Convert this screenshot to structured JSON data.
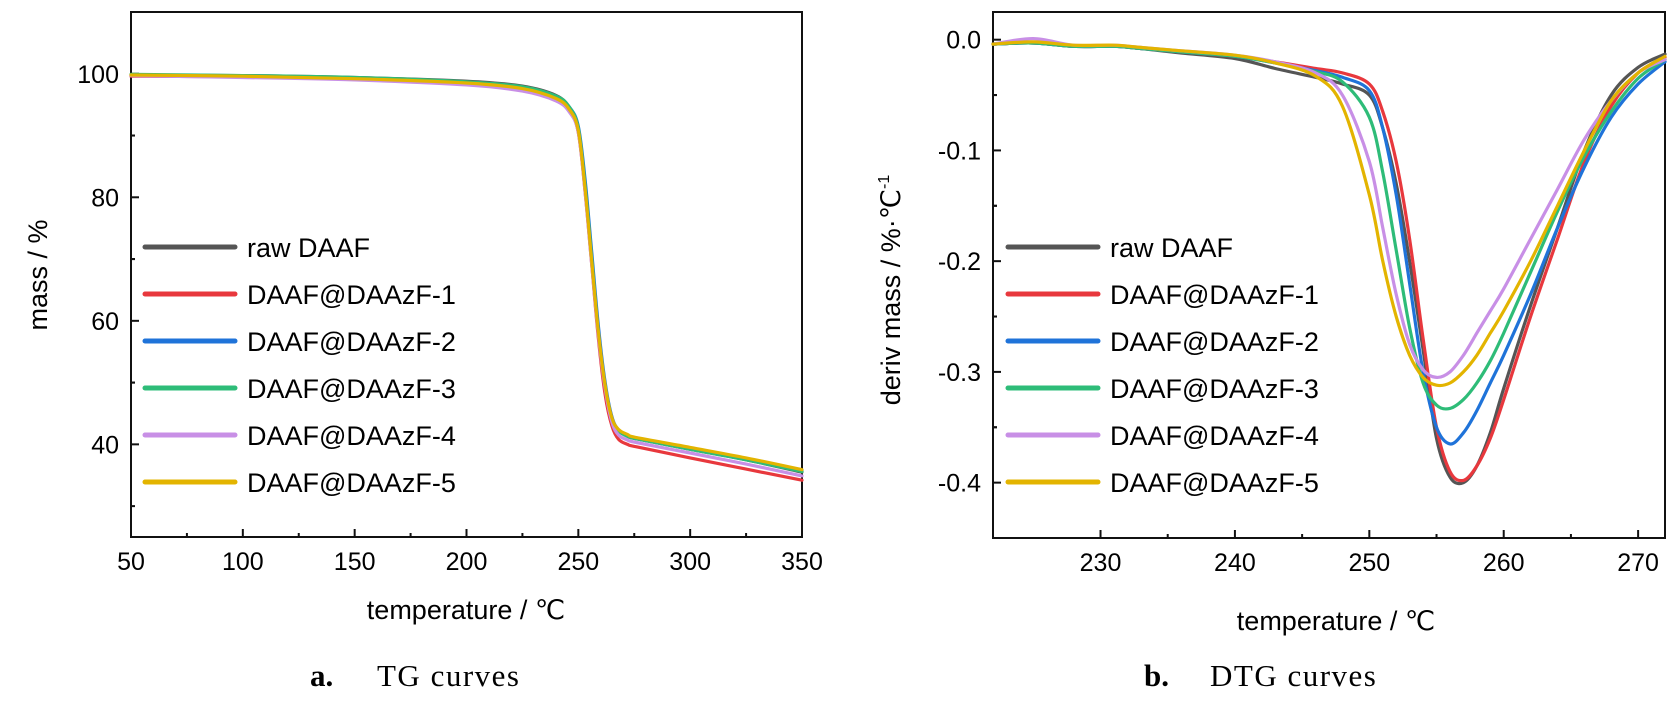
{
  "figure": {
    "panels": [
      {
        "caption_letter": "a.",
        "caption_text": "TG curves"
      },
      {
        "caption_letter": "b.",
        "caption_text": "DTG curves"
      }
    ]
  },
  "colors": {
    "raw DAAF": "#555555",
    "DAAF@DAAzF-1": "#e8383d",
    "DAAF@DAAzF-2": "#1f73d9",
    "DAAF@DAAzF-3": "#2ebc78",
    "DAAF@DAAzF-4": "#c88fe6",
    "DAAF@DAAzF-5": "#e3b400"
  },
  "chart_data": [
    {
      "type": "line",
      "xlabel": "temperature / ℃",
      "ylabel": "mass / %",
      "xlim": [
        50,
        350
      ],
      "ylim": [
        25,
        110
      ],
      "xticks": [
        50,
        100,
        150,
        200,
        250,
        300,
        350
      ],
      "yticks": [
        40,
        60,
        80,
        100
      ],
      "legend_position": "center-left",
      "grid": false,
      "series": [
        {
          "name": "raw DAAF",
          "x": [
            50,
            100,
            150,
            200,
            225,
            240,
            246,
            250,
            253,
            256,
            259,
            262,
            265,
            268,
            272,
            276,
            300,
            325,
            350
          ],
          "y": [
            99.8,
            99.7,
            99.4,
            98.8,
            98.0,
            96.5,
            94.5,
            91.0,
            82,
            70,
            58,
            49,
            44,
            42.2,
            41.3,
            40.9,
            39.2,
            37.5,
            35.5
          ]
        },
        {
          "name": "DAAF@DAAzF-1",
          "x": [
            50,
            100,
            150,
            200,
            225,
            240,
            246,
            250,
            253,
            256,
            259,
            262,
            265,
            268,
            272,
            276,
            300,
            325,
            350
          ],
          "y": [
            99.6,
            99.5,
            99.2,
            98.5,
            97.7,
            96.2,
            94.2,
            90.5,
            81,
            69,
            57,
            48,
            43,
            40.8,
            40.0,
            39.6,
            37.8,
            36.0,
            34.2
          ]
        },
        {
          "name": "DAAF@DAAzF-2",
          "x": [
            50,
            100,
            150,
            200,
            225,
            240,
            246,
            250,
            253,
            256,
            259,
            262,
            265,
            268,
            272,
            276,
            300,
            325,
            350
          ],
          "y": [
            99.8,
            99.6,
            99.3,
            98.6,
            97.8,
            96.3,
            94.6,
            91.5,
            83,
            71,
            59,
            50,
            44.5,
            42.3,
            41.5,
            41.0,
            39.3,
            37.6,
            35.7
          ]
        },
        {
          "name": "DAAF@DAAzF-3",
          "x": [
            50,
            100,
            150,
            200,
            225,
            240,
            246,
            250,
            253,
            256,
            259,
            262,
            265,
            268,
            272,
            276,
            300,
            325,
            350
          ],
          "y": [
            99.9,
            99.7,
            99.4,
            98.7,
            97.9,
            96.4,
            94.6,
            91.2,
            82,
            70,
            58,
            49.5,
            44.2,
            42.2,
            41.3,
            40.9,
            39.2,
            37.5,
            35.6
          ]
        },
        {
          "name": "DAAF@DAAzF-4",
          "x": [
            50,
            100,
            150,
            200,
            225,
            240,
            246,
            250,
            253,
            256,
            259,
            262,
            265,
            268,
            272,
            276,
            300,
            325,
            350
          ],
          "y": [
            99.7,
            99.4,
            99.0,
            98.2,
            97.2,
            95.6,
            93.8,
            90.5,
            81,
            69,
            57.5,
            49,
            43.6,
            41.5,
            40.7,
            40.3,
            38.6,
            36.8,
            34.9
          ]
        },
        {
          "name": "DAAF@DAAzF-5",
          "x": [
            50,
            100,
            150,
            200,
            225,
            240,
            246,
            250,
            253,
            256,
            259,
            262,
            265,
            268,
            272,
            276,
            300,
            325,
            350
          ],
          "y": [
            99.8,
            99.6,
            99.2,
            98.5,
            97.6,
            96.0,
            94.2,
            90.8,
            81.5,
            69.5,
            58,
            49.5,
            44.3,
            42.4,
            41.6,
            41.1,
            39.5,
            37.8,
            35.9
          ]
        }
      ]
    },
    {
      "type": "line",
      "xlabel": "temperature / ℃",
      "ylabel": "deriv  mass / %·℃",
      "ylabel_superscript": "-1",
      "xlim": [
        222,
        272
      ],
      "ylim": [
        -0.45,
        0.025
      ],
      "xticks": [
        230,
        240,
        250,
        260,
        270
      ],
      "yticks": [
        0.0,
        -0.1,
        -0.2,
        -0.3,
        -0.4
      ],
      "ytick_labels": [
        "0.0",
        "-0.1",
        "-0.2",
        "-0.3",
        "-0.4"
      ],
      "legend_position": "lower-left",
      "grid": false,
      "series": [
        {
          "name": "raw DAAF",
          "x": [
            222,
            225,
            228,
            231,
            233,
            236,
            240,
            243,
            246,
            248,
            250,
            251,
            252,
            253,
            254,
            255,
            256,
            257,
            258,
            259,
            260,
            262,
            264,
            266,
            268,
            270,
            272
          ],
          "y": [
            -0.004,
            -0.003,
            -0.006,
            -0.006,
            -0.008,
            -0.012,
            -0.017,
            -0.026,
            -0.034,
            -0.04,
            -0.05,
            -0.08,
            -0.13,
            -0.2,
            -0.28,
            -0.36,
            -0.395,
            -0.4,
            -0.385,
            -0.355,
            -0.315,
            -0.24,
            -0.17,
            -0.1,
            -0.05,
            -0.025,
            -0.013
          ]
        },
        {
          "name": "DAAF@DAAzF-1",
          "x": [
            222,
            225,
            228,
            231,
            233,
            236,
            240,
            243,
            246,
            248,
            250,
            251,
            252,
            253,
            254,
            255,
            256,
            257,
            258,
            259,
            260,
            262,
            264,
            266,
            268,
            270,
            272
          ],
          "y": [
            -0.004,
            -0.003,
            -0.006,
            -0.006,
            -0.008,
            -0.011,
            -0.015,
            -0.02,
            -0.026,
            -0.03,
            -0.04,
            -0.065,
            -0.11,
            -0.18,
            -0.27,
            -0.35,
            -0.39,
            -0.398,
            -0.385,
            -0.36,
            -0.325,
            -0.25,
            -0.18,
            -0.11,
            -0.06,
            -0.03,
            -0.016
          ]
        },
        {
          "name": "DAAF@DAAzF-2",
          "x": [
            222,
            225,
            228,
            231,
            233,
            236,
            240,
            243,
            246,
            248,
            250,
            251,
            252,
            253,
            254,
            255,
            256,
            257,
            258,
            259,
            260,
            262,
            264,
            266,
            268,
            270,
            272
          ],
          "y": [
            -0.004,
            -0.003,
            -0.006,
            -0.006,
            -0.008,
            -0.011,
            -0.015,
            -0.021,
            -0.028,
            -0.034,
            -0.046,
            -0.08,
            -0.14,
            -0.22,
            -0.3,
            -0.35,
            -0.365,
            -0.355,
            -0.335,
            -0.31,
            -0.285,
            -0.23,
            -0.17,
            -0.115,
            -0.07,
            -0.04,
            -0.02
          ]
        },
        {
          "name": "DAAF@DAAzF-3",
          "x": [
            222,
            225,
            228,
            231,
            233,
            236,
            240,
            243,
            246,
            248,
            250,
            251,
            252,
            253,
            254,
            255,
            256,
            257,
            258,
            259,
            260,
            262,
            264,
            266,
            268,
            270,
            272
          ],
          "y": [
            -0.004,
            -0.003,
            -0.006,
            -0.006,
            -0.008,
            -0.011,
            -0.015,
            -0.021,
            -0.029,
            -0.038,
            -0.07,
            -0.12,
            -0.19,
            -0.26,
            -0.31,
            -0.33,
            -0.333,
            -0.325,
            -0.31,
            -0.29,
            -0.265,
            -0.21,
            -0.155,
            -0.105,
            -0.065,
            -0.035,
            -0.018
          ]
        },
        {
          "name": "DAAF@DAAzF-4",
          "x": [
            222,
            225,
            228,
            231,
            233,
            236,
            240,
            243,
            246,
            248,
            250,
            251,
            252,
            253,
            254,
            255,
            256,
            257,
            258,
            259,
            260,
            262,
            264,
            266,
            268,
            270,
            272
          ],
          "y": [
            -0.004,
            0.001,
            -0.005,
            -0.005,
            -0.007,
            -0.01,
            -0.014,
            -0.02,
            -0.03,
            -0.05,
            -0.11,
            -0.17,
            -0.23,
            -0.275,
            -0.298,
            -0.305,
            -0.3,
            -0.285,
            -0.265,
            -0.245,
            -0.225,
            -0.18,
            -0.135,
            -0.09,
            -0.055,
            -0.03,
            -0.018
          ]
        },
        {
          "name": "DAAF@DAAzF-5",
          "x": [
            222,
            225,
            228,
            231,
            233,
            236,
            240,
            243,
            246,
            248,
            250,
            251,
            252,
            253,
            254,
            255,
            256,
            257,
            258,
            259,
            260,
            262,
            264,
            266,
            268,
            270,
            272
          ],
          "y": [
            -0.004,
            -0.002,
            -0.005,
            -0.005,
            -0.007,
            -0.01,
            -0.014,
            -0.021,
            -0.033,
            -0.06,
            -0.14,
            -0.2,
            -0.25,
            -0.285,
            -0.305,
            -0.312,
            -0.31,
            -0.3,
            -0.285,
            -0.265,
            -0.245,
            -0.2,
            -0.15,
            -0.1,
            -0.055,
            -0.03,
            -0.015
          ]
        }
      ]
    }
  ]
}
